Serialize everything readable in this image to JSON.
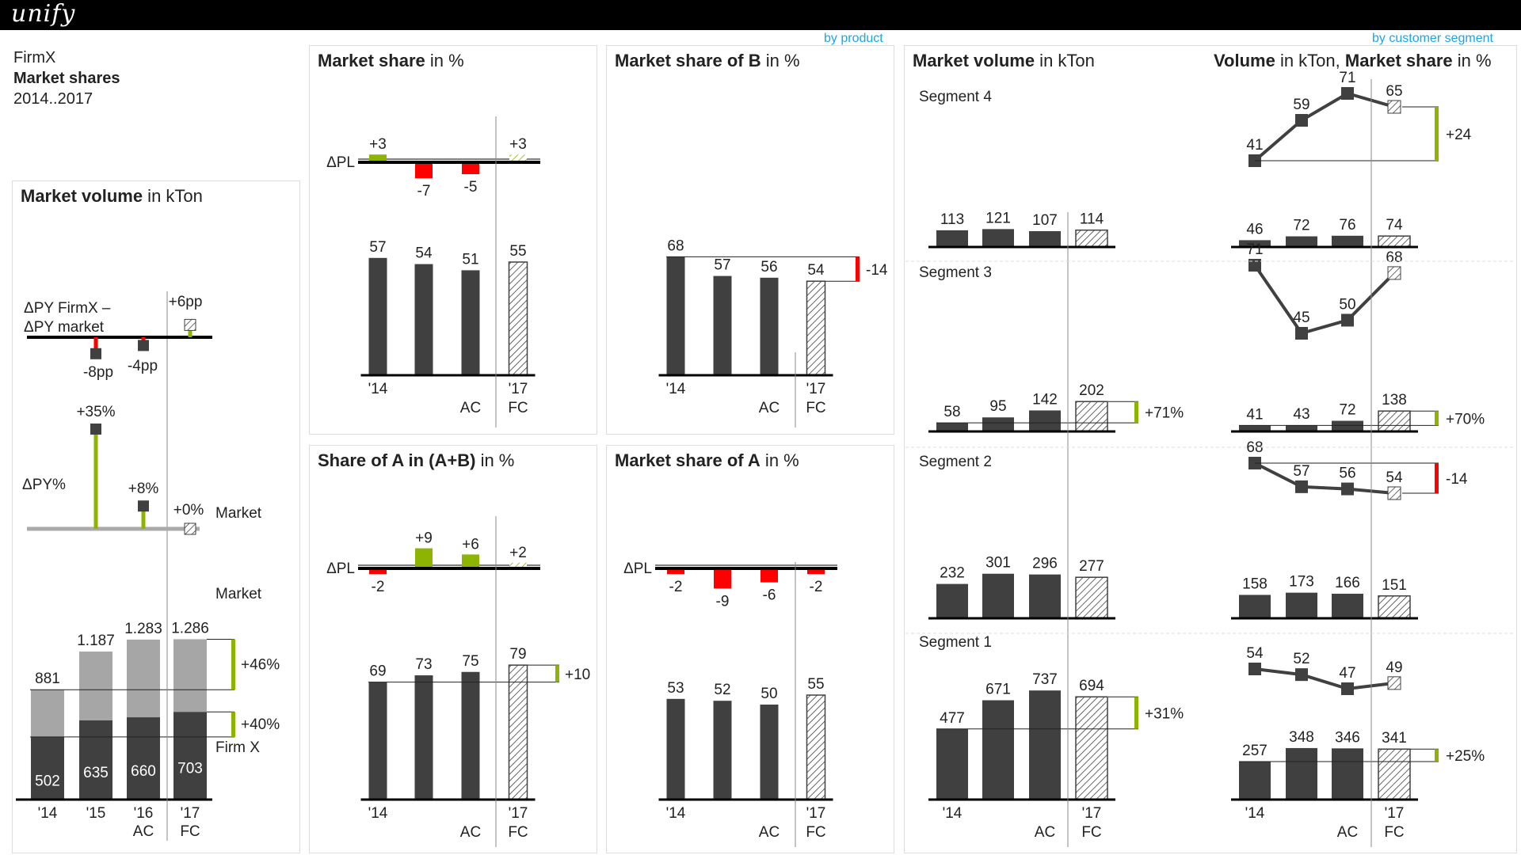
{
  "app": {
    "logo": "unify"
  },
  "header": {
    "company": "FirmX",
    "title": "Market shares",
    "period": "2014..2017"
  },
  "links": {
    "by_product": "by product",
    "by_segment": "by customer segment"
  },
  "colors": {
    "ac": "#404040",
    "ac_light": "#a6a6a6",
    "pos": "#8cb400",
    "neg": "#ff0000",
    "axis": "#000000"
  },
  "chart_data": [
    {
      "id": "market_volume",
      "type": "bar",
      "title_bold": "Market volume",
      "title_unit": " in kTon",
      "categories": [
        "'14",
        "'15",
        "'16",
        "'17"
      ],
      "scenario_labels": [
        "AC",
        "FC"
      ],
      "series": [
        {
          "name": "Market",
          "values": [
            881,
            1187,
            1283,
            1286
          ],
          "labels": [
            "881",
            "1.187",
            "1.283",
            "1.286"
          ]
        },
        {
          "name": "Firm X",
          "values": [
            502,
            635,
            660,
            703
          ],
          "labels": [
            "502",
            "635",
            "660",
            "703"
          ]
        }
      ],
      "delta_market_label": "+46%",
      "delta_firm_label": "+40%",
      "dpy_label": "ΔPY%",
      "dpy_market": {
        "values": [
          35,
          8,
          0
        ],
        "labels": [
          "+35%",
          "+8%",
          "+0%"
        ],
        "name": "Market"
      },
      "dpy_diff": {
        "label_line1": "ΔPY FirmX –",
        "label_line2": "ΔPY market",
        "values": [
          -8,
          -4,
          6
        ],
        "labels": [
          "-8pp",
          "-4pp",
          "+6pp"
        ]
      }
    },
    {
      "id": "market_share",
      "type": "bar",
      "title_bold": "Market share",
      "title_unit": " in %",
      "categories": [
        "'14",
        "",
        "",
        "'17"
      ],
      "scenario_labels": [
        "AC",
        "FC"
      ],
      "values": [
        57,
        54,
        51,
        55
      ],
      "delta_label": "ΔPL",
      "delta_values": [
        3,
        -7,
        -5,
        3
      ],
      "delta_labels": [
        "+3",
        "-7",
        "-5",
        "+3"
      ]
    },
    {
      "id": "market_share_b",
      "type": "bar",
      "title_bold": "Market share of B",
      "title_unit": " in %",
      "categories": [
        "'14",
        "",
        "",
        "'17"
      ],
      "scenario_labels": [
        "AC",
        "FC"
      ],
      "values": [
        68,
        57,
        56,
        54
      ],
      "diff_label": "-14"
    },
    {
      "id": "share_a_in_ab",
      "type": "bar",
      "title_bold": "Share of A in (A+B)",
      "title_unit": " in %",
      "categories": [
        "'14",
        "",
        "",
        "'17"
      ],
      "scenario_labels": [
        "AC",
        "FC"
      ],
      "values": [
        69,
        73,
        75,
        79
      ],
      "diff_label": "+10",
      "delta_label": "ΔPL",
      "delta_values": [
        -2,
        9,
        6,
        2
      ],
      "delta_labels": [
        "-2",
        "+9",
        "+6",
        "+2"
      ]
    },
    {
      "id": "market_share_a",
      "type": "bar",
      "title_bold": "Market share of A",
      "title_unit": " in %",
      "categories": [
        "'14",
        "",
        "",
        "'17"
      ],
      "scenario_labels": [
        "AC",
        "FC"
      ],
      "values": [
        53,
        52,
        50,
        55
      ],
      "delta_label": "ΔPL",
      "delta_values": [
        -2,
        -9,
        -6,
        -2
      ],
      "delta_labels": [
        "-2",
        "-9",
        "-6",
        "-2"
      ]
    },
    {
      "id": "segment_volume",
      "type": "bar",
      "title_bold": "Market volume",
      "title_unit": " in kTon",
      "categories": [
        "'14",
        "",
        "",
        "'17"
      ],
      "scenario_labels": [
        "AC",
        "FC"
      ],
      "segments": [
        {
          "name": "Segment 4",
          "values": [
            113,
            121,
            107,
            114
          ],
          "diff_label": ""
        },
        {
          "name": "Segment 3",
          "values": [
            58,
            95,
            142,
            202
          ],
          "diff_label": "+71%"
        },
        {
          "name": "Segment 2",
          "values": [
            232,
            301,
            296,
            277
          ],
          "diff_label": ""
        },
        {
          "name": "Segment 1",
          "values": [
            477,
            671,
            737,
            694
          ],
          "diff_label": "+31%"
        }
      ]
    },
    {
      "id": "segment_volume_share",
      "type": "line",
      "title_bold1": "Volume",
      "title_unit1": " in kTon, ",
      "title_bold2": "Market share",
      "title_unit2": " in %",
      "categories": [
        "'14",
        "",
        "",
        "'17"
      ],
      "scenario_labels": [
        "AC",
        "FC"
      ],
      "segments": [
        {
          "volume": [
            46,
            72,
            76,
            74
          ],
          "share": [
            41,
            59,
            71,
            65
          ],
          "share_diff": "+24",
          "volume_diff": ""
        },
        {
          "volume": [
            41,
            43,
            72,
            138
          ],
          "share": [
            71,
            45,
            50,
            68
          ],
          "share_diff": "",
          "volume_diff": "+70%"
        },
        {
          "volume": [
            158,
            173,
            166,
            151
          ],
          "share": [
            68,
            57,
            56,
            54
          ],
          "share_diff": "-14",
          "volume_diff": ""
        },
        {
          "volume": [
            257,
            348,
            346,
            341
          ],
          "share": [
            54,
            52,
            47,
            49
          ],
          "share_diff": "",
          "volume_diff": "+25%"
        }
      ]
    }
  ]
}
